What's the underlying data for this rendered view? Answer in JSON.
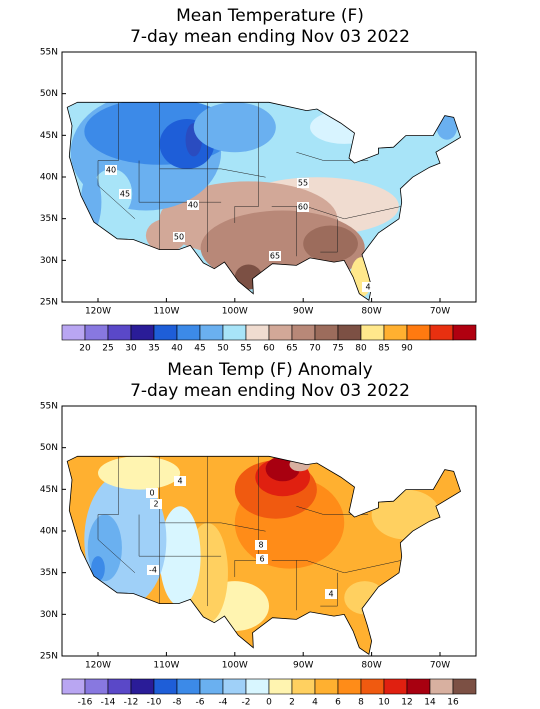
{
  "panels": [
    {
      "title": "Mean Temperature (F)",
      "subtitle": "7-day mean ending Nov 03 2022",
      "lat_labels": [
        "55N",
        "50N",
        "45N",
        "40N",
        "35N",
        "30N",
        "25N"
      ],
      "lon_labels": [
        "120W",
        "110W",
        "100W",
        "90W",
        "80W",
        "70W"
      ],
      "contour_labels": [
        "40",
        "45",
        "40",
        "50",
        "55",
        "60",
        "65",
        "4"
      ],
      "colorbar": {
        "labels": [
          "20",
          "25",
          "30",
          "35",
          "40",
          "45",
          "50",
          "55",
          "60",
          "65",
          "70",
          "75",
          "80",
          "85",
          "90"
        ],
        "colors": [
          "#b9a6f2",
          "#8878e0",
          "#5a48c8",
          "#2a1c98",
          "#1e5ed8",
          "#3c8ae8",
          "#6ab0f0",
          "#a8e4f8",
          "#f0dcd0",
          "#d2a898",
          "#b88878",
          "#9c6c5c",
          "#7c5044",
          "#ffe88c",
          "#ffb030",
          "#ff7a10",
          "#e83010",
          "#b00010"
        ]
      }
    },
    {
      "title": "Mean Temp (F) Anomaly",
      "subtitle": "7-day mean ending Nov 03 2022",
      "lat_labels": [
        "55N",
        "50N",
        "45N",
        "40N",
        "35N",
        "30N",
        "25N"
      ],
      "lon_labels": [
        "120W",
        "110W",
        "100W",
        "90W",
        "80W",
        "70W"
      ],
      "contour_labels": [
        "4",
        "0",
        "2",
        "-4",
        "8",
        "6",
        "4"
      ],
      "colorbar": {
        "labels": [
          "-16",
          "-14",
          "-12",
          "-10",
          "-8",
          "-6",
          "-4",
          "-2",
          "0",
          "2",
          "4",
          "6",
          "8",
          "10",
          "12",
          "14",
          "16"
        ],
        "colors": [
          "#b9a6f2",
          "#8878e0",
          "#5a48c8",
          "#2a1c98",
          "#1e5ed8",
          "#3c8ae8",
          "#6ab0f0",
          "#9fd0f8",
          "#d8f6ff",
          "#fff4b0",
          "#ffd060",
          "#ffb030",
          "#ff8c18",
          "#f05a10",
          "#e02010",
          "#a80010",
          "#d8b0a0",
          "#7c5044"
        ]
      }
    }
  ]
}
